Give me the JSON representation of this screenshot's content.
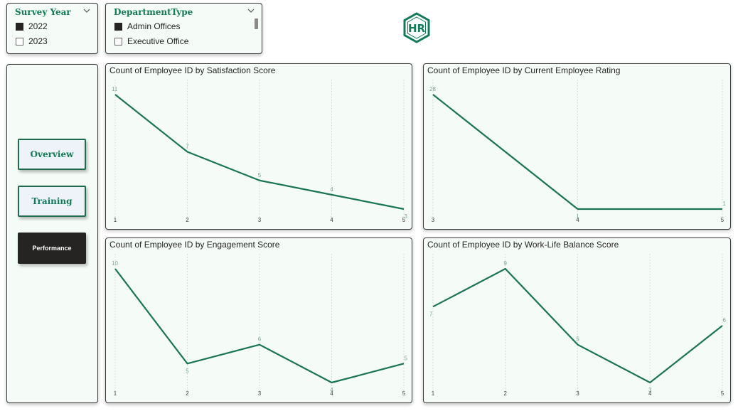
{
  "slicers": {
    "survey_year": {
      "title": "Survey Year",
      "items": [
        {
          "label": "2022",
          "checked": true
        },
        {
          "label": "2023",
          "checked": false
        }
      ]
    },
    "department_type": {
      "title": "DepartmentType",
      "items": [
        {
          "label": "Admin Offices",
          "checked": true
        },
        {
          "label": "Executive Office",
          "checked": false
        }
      ]
    }
  },
  "logo": {
    "text": "HR",
    "icon": "hr-hexagon-logo"
  },
  "nav": {
    "overview_label": "Overview",
    "training_label": "Training",
    "performance_label": "Performance",
    "active": "performance"
  },
  "colors": {
    "accent": "#117a57",
    "line": "#1a7456",
    "card_bg": "#f5fcf7",
    "active_button": "#252423"
  },
  "chart_data": [
    {
      "type": "line",
      "title": "Count of Employee ID by Satisfaction Score",
      "x": [
        1,
        2,
        3,
        4,
        5
      ],
      "values": [
        11,
        7,
        5,
        4,
        3
      ],
      "ylim": [
        3,
        11
      ]
    },
    {
      "type": "line",
      "title": "Count of Employee ID by Current Employee Rating",
      "x": [
        3,
        4,
        5
      ],
      "values": [
        28,
        1,
        1
      ],
      "ylim": [
        1,
        28
      ]
    },
    {
      "type": "line",
      "title": "Count of Employee ID by Engagement Score",
      "x": [
        1,
        2,
        3,
        4,
        5
      ],
      "values": [
        10,
        5,
        6,
        4,
        5
      ],
      "ylim": [
        4,
        10
      ]
    },
    {
      "type": "line",
      "title": "Count of Employee ID by Work-Life Balance Score",
      "x": [
        1,
        2,
        3,
        4,
        5
      ],
      "values": [
        7,
        9,
        5,
        3,
        6
      ],
      "ylim": [
        3,
        9
      ]
    }
  ]
}
